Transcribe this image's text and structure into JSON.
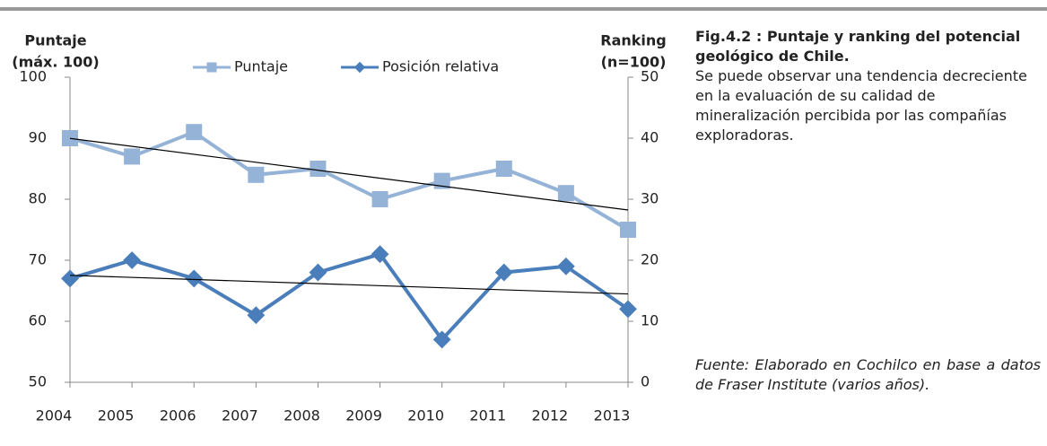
{
  "chart_data": {
    "type": "line",
    "title": "Fig.4.2 : Puntaje y ranking del potencial geológico de Chile.",
    "description": "Se puede observar una tendencia decreciente en la evaluación de su calidad de mineralización percibida por las compañías exploradoras.",
    "source": "Fuente: Elaborado en Cochilco en base a datos de Fraser Institute (varios años).",
    "ylabel": [
      "Puntaje",
      "(máx. 100)"
    ],
    "y2label": [
      "Ranking",
      "(n=100)"
    ],
    "categories": [
      "2004",
      "2005",
      "2006",
      "2007",
      "2008",
      "2009",
      "2010",
      "2011",
      "2012",
      "2013"
    ],
    "series": [
      {
        "name": "Puntaje",
        "color": "#95b3d7",
        "marker": "square",
        "axis": "y",
        "values": [
          90,
          87,
          91,
          84,
          85,
          80,
          83,
          85,
          81,
          75
        ]
      },
      {
        "name": "Posición relativa",
        "color": "#4a7ebb",
        "marker": "diamond",
        "axis": "y2",
        "values": [
          17,
          20,
          17,
          11,
          18,
          21,
          7,
          18,
          19,
          12
        ]
      }
    ],
    "ylim": [
      50,
      100
    ],
    "yticks": [
      50,
      60,
      70,
      80,
      90,
      100
    ],
    "y2lim": [
      0,
      50
    ],
    "y2ticks": [
      0,
      10,
      20,
      30,
      40,
      50
    ],
    "trendline": true,
    "trendline_color": "#000000"
  }
}
